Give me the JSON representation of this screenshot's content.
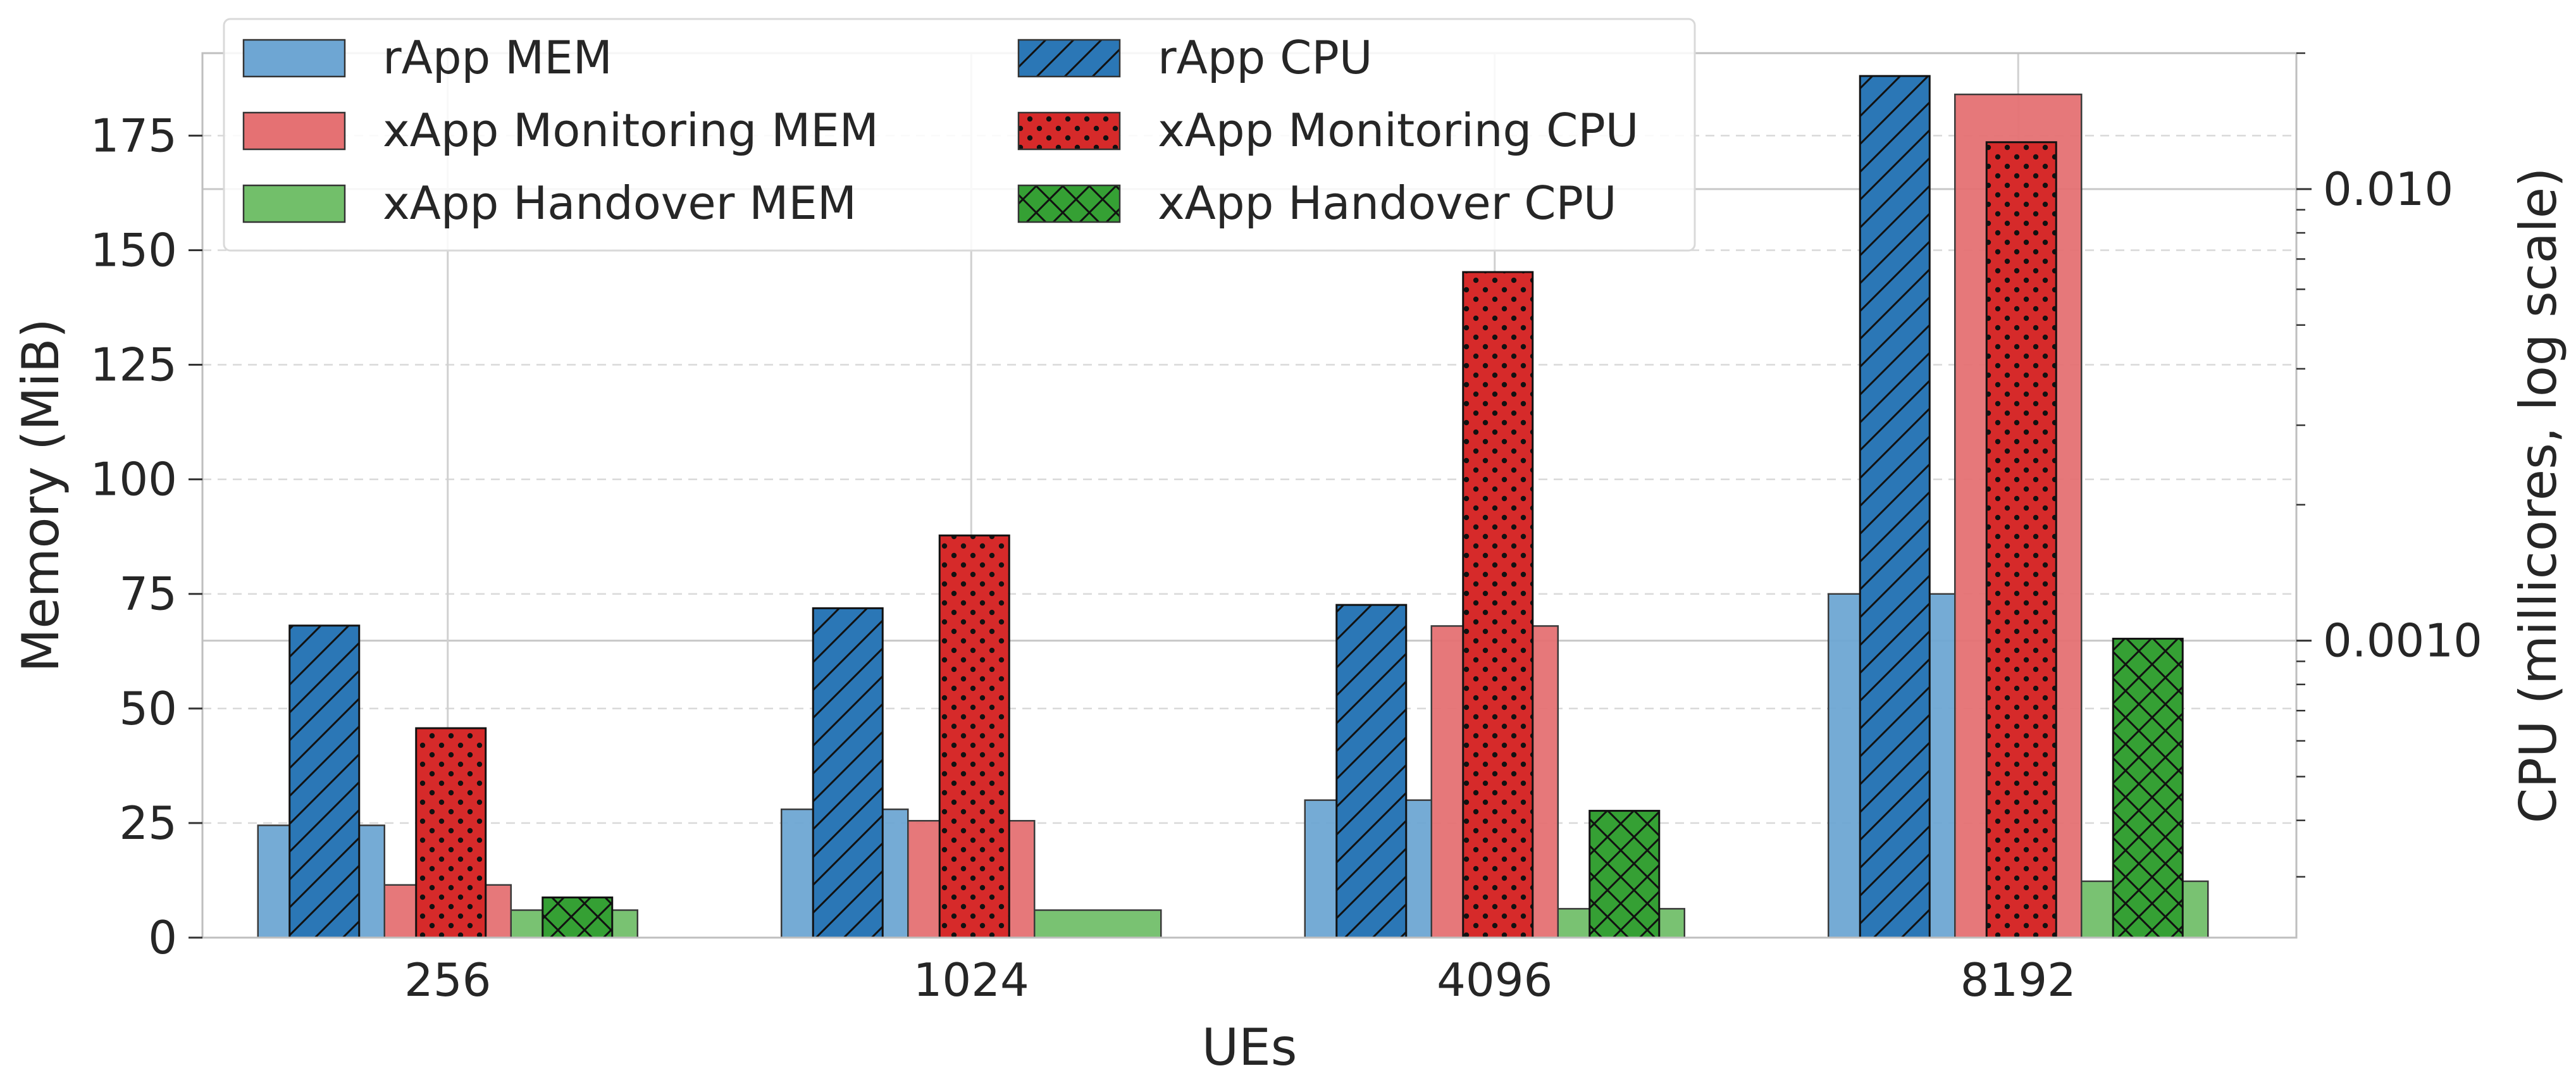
{
  "chart_data": {
    "type": "bar",
    "xlabel": "UEs",
    "ylabel": "Memory (MiB)",
    "y2label": "CPU (millicores, log scale)",
    "categories": [
      "256",
      "1024",
      "4096",
      "8192"
    ],
    "ylim": [
      0,
      193
    ],
    "yticks": [
      0,
      25,
      50,
      75,
      100,
      125,
      150,
      175
    ],
    "y2scale": "log",
    "y2lim": [
      0.00022,
      0.02
    ],
    "y2ticks": [
      0.001,
      0.01
    ],
    "y2ticklabels": [
      "0.0010",
      "0.010"
    ],
    "grid": true,
    "legend_position": "top-left",
    "memory_series": [
      {
        "name": "rApp MEM",
        "values": [
          24.5,
          28,
          30,
          75
        ],
        "color": "#6ea6d3"
      },
      {
        "name": "xApp Monitoring MEM",
        "values": [
          11.5,
          25.5,
          68,
          184
        ],
        "color": "#e57173"
      },
      {
        "name": "xApp Handover MEM",
        "values": [
          6,
          6,
          6.3,
          12.3
        ],
        "color": "#72bf6a"
      }
    ],
    "cpu_series": [
      {
        "name": "rApp CPU",
        "values": [
          0.00108,
          0.00118,
          0.0012,
          0.0178
        ],
        "color": "#2b77b6",
        "hatch": "diagonal"
      },
      {
        "name": "xApp Monitoring CPU",
        "values": [
          0.00064,
          0.00171,
          0.00655,
          0.0127
        ],
        "color": "#d62a2a",
        "hatch": "dots"
      },
      {
        "name": "xApp Handover CPU",
        "values": [
          0.00027,
          0.00022,
          0.00042,
          0.00101
        ],
        "color": "#35a034",
        "hatch": "crosshatch"
      }
    ]
  },
  "legend": [
    {
      "label": "rApp MEM",
      "series": "mem",
      "index": 0
    },
    {
      "label": "xApp Monitoring MEM",
      "series": "mem",
      "index": 1
    },
    {
      "label": "xApp Handover MEM",
      "series": "mem",
      "index": 2
    },
    {
      "label": "rApp CPU",
      "series": "cpu",
      "index": 0
    },
    {
      "label": "xApp Monitoring CPU",
      "series": "cpu",
      "index": 1
    },
    {
      "label": "xApp Handover CPU",
      "series": "cpu",
      "index": 2
    }
  ]
}
